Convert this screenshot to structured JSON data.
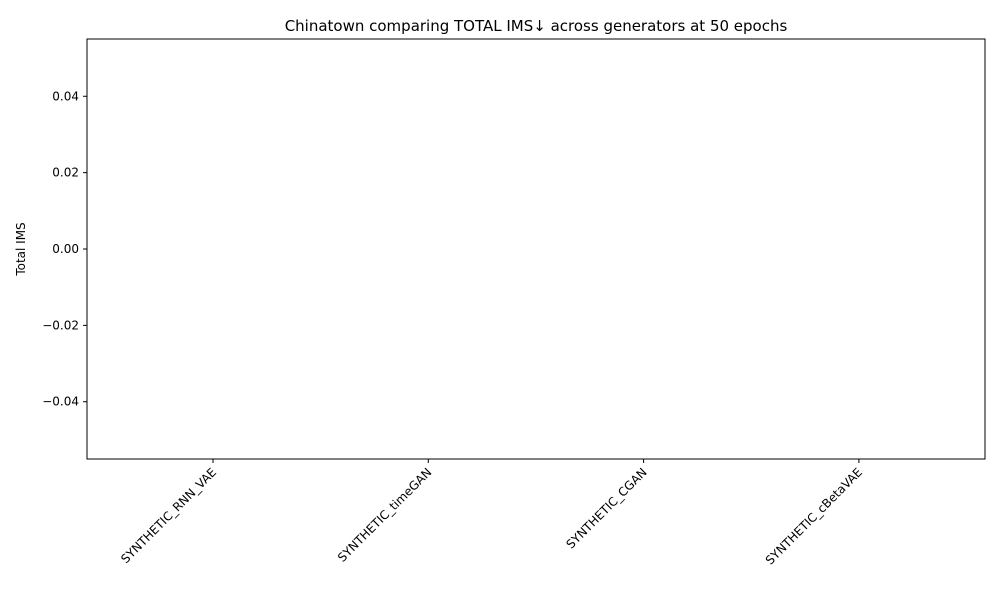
{
  "chart_data": {
    "type": "bar",
    "title": "Chinatown comparing TOTAL IMS↓ across generators at 50 epochs",
    "xlabel": "",
    "ylabel": "Total IMS",
    "categories": [
      "SYNTHETIC_RNN_VAE",
      "SYNTHETIC_timeGAN",
      "SYNTHETIC_CGAN",
      "SYNTHETIC_cBetaVAE"
    ],
    "values": [
      0,
      0,
      0,
      0
    ],
    "ylim": [
      -0.055,
      0.055
    ],
    "yticks": [
      0.04,
      0.02,
      0.0,
      -0.02,
      -0.04
    ],
    "ytick_labels": [
      "0.04",
      "0.02",
      "0.00",
      "−0.02",
      "−0.04"
    ],
    "grid": false,
    "legend": false,
    "colors": {
      "bar": "#1f77b4",
      "axes": "#000000",
      "background": "#ffffff"
    }
  }
}
